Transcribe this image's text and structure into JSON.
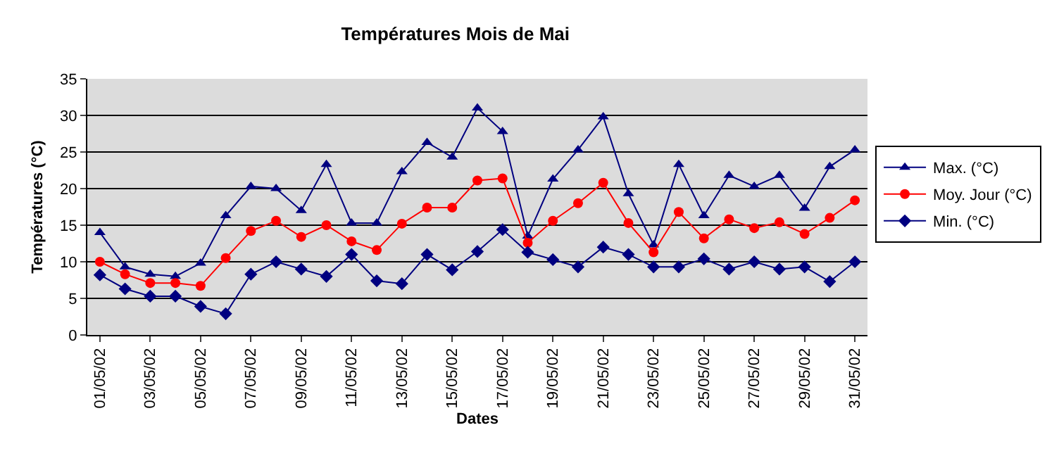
{
  "chart_data": {
    "type": "line",
    "title": "Températures Mois de Mai",
    "xlabel": "Dates",
    "ylabel": "Températures (°C)",
    "categories": [
      "01/05/02",
      null,
      "03/05/02",
      null,
      "05/05/02",
      null,
      "07/05/02",
      null,
      "09/05/02",
      null,
      "11/05/02",
      null,
      "13/05/02",
      null,
      "15/05/02",
      null,
      "17/05/02",
      null,
      "19/05/02",
      null,
      "21/05/02",
      null,
      "23/05/02",
      null,
      "25/05/02",
      null,
      "27/05/02",
      null,
      "29/05/02",
      null,
      "31/05/02"
    ],
    "series": [
      {
        "name": "Max. (°C)",
        "color": "#000080",
        "marker": "triangle",
        "values": [
          14,
          9.3,
          8.3,
          8,
          9.8,
          16.3,
          20.3,
          20,
          17,
          23.3,
          15.3,
          15.3,
          22.3,
          26.3,
          24.3,
          31,
          27.8,
          13.5,
          21.3,
          25.3,
          29.8,
          19.3,
          12.3,
          23.3,
          16.3,
          21.8,
          20.3,
          21.8,
          17.3,
          23,
          25.3
        ]
      },
      {
        "name": "Moy. Jour (°C)",
        "color": "#ff0000",
        "marker": "circle",
        "values": [
          10,
          8.3,
          7.1,
          7.1,
          6.7,
          10.5,
          14.2,
          15.6,
          13.4,
          15,
          12.8,
          11.6,
          15.2,
          17.4,
          17.4,
          21.1,
          21.4,
          12.6,
          15.6,
          18,
          20.8,
          15.3,
          11.3,
          16.8,
          13.2,
          15.8,
          14.6,
          15.4,
          13.8,
          16,
          18.4
        ]
      },
      {
        "name": "Min. (°C)",
        "color": "#000080",
        "marker": "diamond",
        "values": [
          8.2,
          6.3,
          5.3,
          5.3,
          3.9,
          2.9,
          8.3,
          10,
          9,
          8,
          11,
          7.4,
          7,
          11,
          8.9,
          11.4,
          14.4,
          11.3,
          10.3,
          9.3,
          12,
          11,
          9.3,
          9.3,
          10.4,
          9,
          10,
          9,
          9.3,
          7.3,
          10
        ]
      }
    ],
    "ylim": [
      0,
      35
    ],
    "yticks": [
      0,
      5,
      10,
      15,
      20,
      25,
      30,
      35
    ],
    "grid": "y",
    "legend": "right"
  }
}
